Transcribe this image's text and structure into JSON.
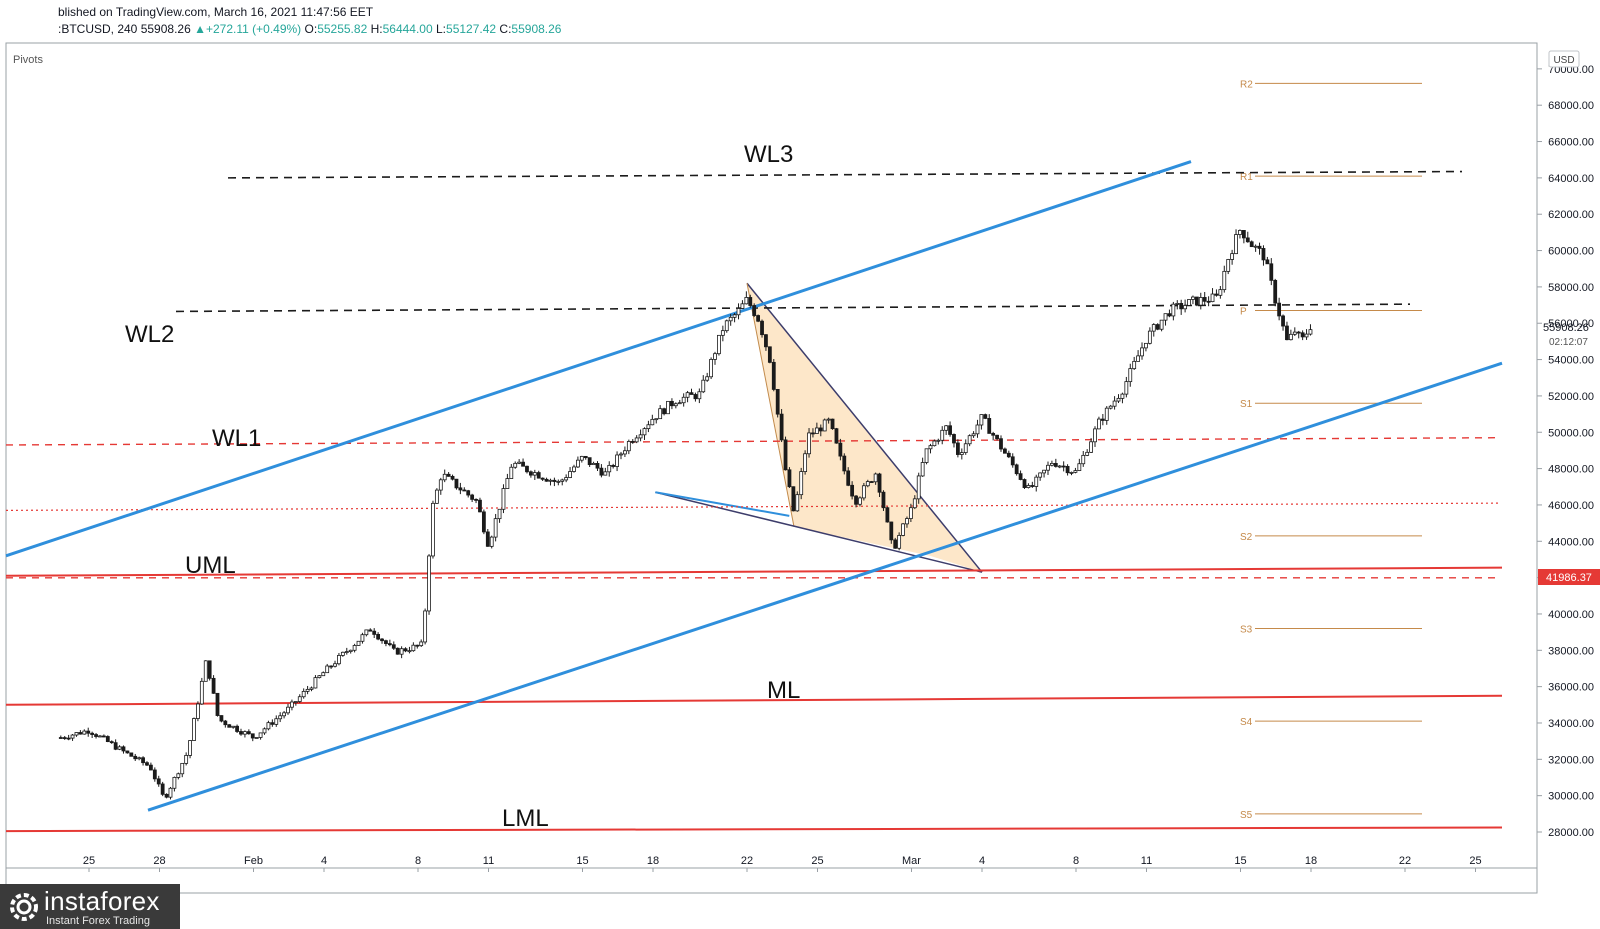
{
  "header": {
    "published_line": "blished on TradingView.com, March 16, 2021 11:47:56 EET",
    "symbol": ":BTCUSD, 240",
    "last": "55908.26",
    "change": "▲+272.11 (+0.49%)",
    "o_label": "O:",
    "o": "55255.82",
    "h_label": "H:",
    "h": "56444.00",
    "l_label": "L:",
    "l": "55127.42",
    "c_label": "C:",
    "c": "55908.26"
  },
  "indicator_label": "Pivots",
  "currency_button": "USD",
  "price_tag": {
    "value": "55908.26",
    "countdown": "02:12:07"
  },
  "level_tag": "41986.37",
  "colors": {
    "blue_channel": "#2f8fdc",
    "red_lines": "#e53935",
    "dashed_black": "#1b1b1b",
    "pivot": "#c58a4a",
    "wedge_fill": "#fde7c9",
    "candle": "#1b1b1b"
  },
  "chart_data": {
    "type": "candlestick",
    "symbol": "BTCUSD",
    "timeframe": "240",
    "y_axis": {
      "ylim": [
        27000,
        71000
      ],
      "ticks": [
        "70000.00",
        "68000.00",
        "66000.00",
        "64000.00",
        "62000.00",
        "60000.00",
        "58000.00",
        "56000.00",
        "54000.00",
        "52000.00",
        "50000.00",
        "48000.00",
        "46000.00",
        "44000.00",
        "42000.00",
        "40000.00",
        "38000.00",
        "36000.00",
        "34000.00",
        "32000.00",
        "30000.00",
        "28000.00"
      ]
    },
    "x_axis": {
      "ticks": [
        "25",
        "28",
        "Feb",
        "4",
        "8",
        "11",
        "15",
        "18",
        "22",
        "25",
        "Mar",
        "4",
        "8",
        "11",
        "15",
        "18",
        "22",
        "25"
      ],
      "tick_day_index": [
        0,
        3,
        7,
        10,
        14,
        17,
        21,
        24,
        28,
        31,
        35,
        38,
        42,
        45,
        49,
        52,
        56,
        59
      ]
    },
    "price_anchors": [
      {
        "d": -1.2,
        "p": 33200
      },
      {
        "d": 0.0,
        "p": 33600
      },
      {
        "d": 1.5,
        "p": 32400
      },
      {
        "d": 2.6,
        "p": 31600
      },
      {
        "d": 3.2,
        "p": 29800
      },
      {
        "d": 4.2,
        "p": 32400
      },
      {
        "d": 5.0,
        "p": 37500
      },
      {
        "d": 5.5,
        "p": 34200
      },
      {
        "d": 7.0,
        "p": 33200
      },
      {
        "d": 8.5,
        "p": 34800
      },
      {
        "d": 10.0,
        "p": 36800
      },
      {
        "d": 12.0,
        "p": 39200
      },
      {
        "d": 13.0,
        "p": 37900
      },
      {
        "d": 14.2,
        "p": 38300
      },
      {
        "d": 14.6,
        "p": 45800
      },
      {
        "d": 15.0,
        "p": 47700
      },
      {
        "d": 16.5,
        "p": 46200
      },
      {
        "d": 17.0,
        "p": 43800
      },
      {
        "d": 18.0,
        "p": 48300
      },
      {
        "d": 20.0,
        "p": 47200
      },
      {
        "d": 21.0,
        "p": 48600
      },
      {
        "d": 22.0,
        "p": 47700
      },
      {
        "d": 23.0,
        "p": 49500
      },
      {
        "d": 24.0,
        "p": 50800
      },
      {
        "d": 25.0,
        "p": 51800
      },
      {
        "d": 26.0,
        "p": 52100
      },
      {
        "d": 27.0,
        "p": 55800
      },
      {
        "d": 27.6,
        "p": 56600
      },
      {
        "d": 28.0,
        "p": 57300
      },
      {
        "d": 28.5,
        "p": 56200
      },
      {
        "d": 29.0,
        "p": 53900
      },
      {
        "d": 29.6,
        "p": 48200
      },
      {
        "d": 30.0,
        "p": 45500
      },
      {
        "d": 30.6,
        "p": 49800
      },
      {
        "d": 31.5,
        "p": 50600
      },
      {
        "d": 32.0,
        "p": 48400
      },
      {
        "d": 32.6,
        "p": 46200
      },
      {
        "d": 33.5,
        "p": 47800
      },
      {
        "d": 34.2,
        "p": 43500
      },
      {
        "d": 35.0,
        "p": 45800
      },
      {
        "d": 35.6,
        "p": 48900
      },
      {
        "d": 36.5,
        "p": 50300
      },
      {
        "d": 37.0,
        "p": 48800
      },
      {
        "d": 38.0,
        "p": 50800
      },
      {
        "d": 39.0,
        "p": 48800
      },
      {
        "d": 40.0,
        "p": 46800
      },
      {
        "d": 41.0,
        "p": 48400
      },
      {
        "d": 42.0,
        "p": 47800
      },
      {
        "d": 43.0,
        "p": 50600
      },
      {
        "d": 44.0,
        "p": 52400
      },
      {
        "d": 45.0,
        "p": 55200
      },
      {
        "d": 46.0,
        "p": 56700
      },
      {
        "d": 47.0,
        "p": 57200
      },
      {
        "d": 48.0,
        "p": 57400
      },
      {
        "d": 48.5,
        "p": 59700
      },
      {
        "d": 49.0,
        "p": 61200
      },
      {
        "d": 49.5,
        "p": 60300
      },
      {
        "d": 50.0,
        "p": 59700
      },
      {
        "d": 50.5,
        "p": 57200
      },
      {
        "d": 51.0,
        "p": 54900
      },
      {
        "d": 51.3,
        "p": 55600
      },
      {
        "d": 51.6,
        "p": 55000
      },
      {
        "d": 52.0,
        "p": 55908
      }
    ],
    "pivot_levels": [
      {
        "name": "R2",
        "value": 69200
      },
      {
        "name": "R1",
        "value": 64100
      },
      {
        "name": "P",
        "value": 56700
      },
      {
        "name": "S1",
        "value": 51600
      },
      {
        "name": "S2",
        "value": 44300
      },
      {
        "name": "S3",
        "value": 39200
      },
      {
        "name": "S4",
        "value": 34100
      },
      {
        "name": "S5",
        "value": 29000
      }
    ],
    "annotations": [
      {
        "label": "WL3",
        "kind": "dashed-horizontal",
        "value": 64300
      },
      {
        "label": "WL2",
        "kind": "dashed-horizontal",
        "value": 56900
      },
      {
        "label": "WL1",
        "kind": "dashed-horizontal",
        "value": 49500
      },
      {
        "label": "UML",
        "kind": "median-line",
        "value": 42400
      },
      {
        "label": "ML",
        "kind": "median-line",
        "value": 35300
      },
      {
        "label": "LML",
        "kind": "median-line",
        "value": 28200
      }
    ],
    "dotted_level": 46000,
    "dashed_red_level": 41986.37,
    "grid": false,
    "legend": "none"
  }
}
